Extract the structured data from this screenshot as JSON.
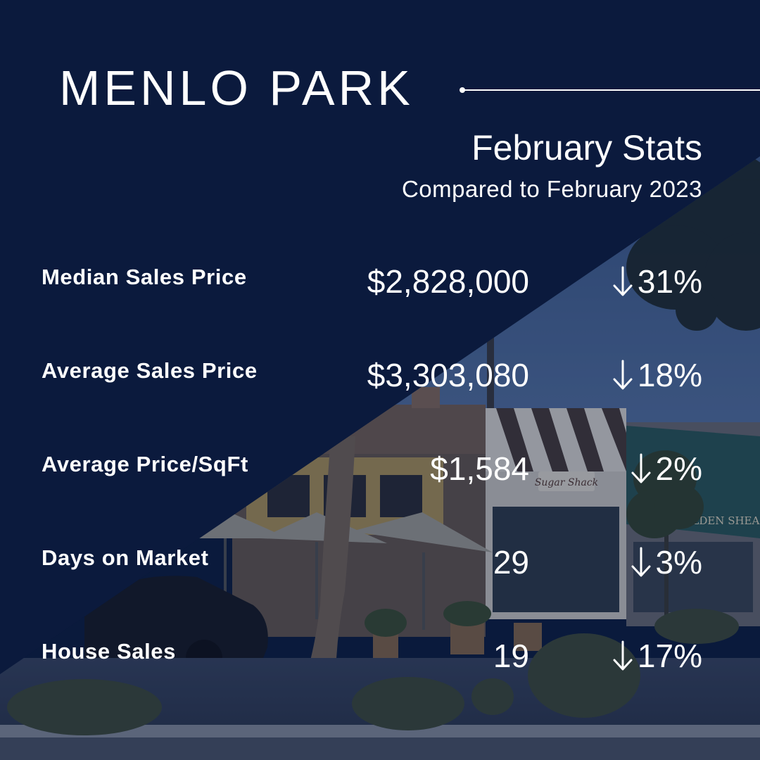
{
  "title": "MENLO PARK",
  "subtitle": "February Stats",
  "comparison": "Compared to February 2023",
  "background_photo": {
    "shop_signs": [
      "Sugar Shack",
      "GOLDEN SHEARS"
    ]
  },
  "stats": [
    {
      "label": "Median Sales Price",
      "value": "$2,828,000",
      "change": "31%",
      "direction": "down"
    },
    {
      "label": "Average Sales Price",
      "value": "$3,303,080",
      "change": "18%",
      "direction": "down"
    },
    {
      "label": "Average Price/SqFt",
      "value": "$1,584",
      "change": "2%",
      "direction": "down"
    },
    {
      "label": "Days on Market",
      "value": "29",
      "change": "3%",
      "direction": "down"
    },
    {
      "label": "House Sales",
      "value": "19",
      "change": "17%",
      "direction": "down"
    }
  ],
  "colors": {
    "navy": "#0b1a3d",
    "text": "#ffffff"
  }
}
